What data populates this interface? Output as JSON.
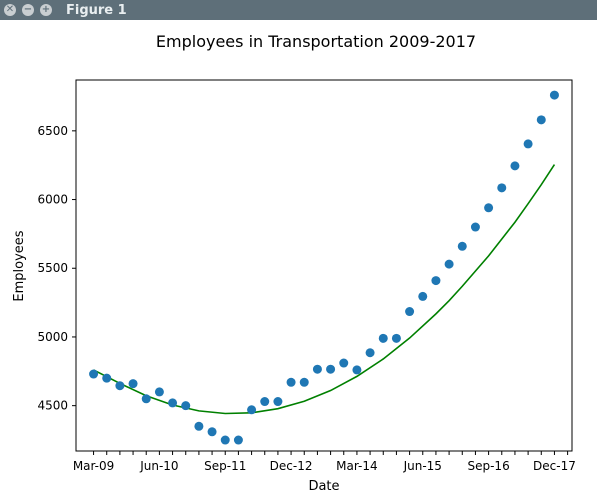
{
  "window": {
    "title": "Figure 1",
    "buttons": [
      {
        "name": "close",
        "glyph": "✕"
      },
      {
        "name": "minimize",
        "glyph": "−"
      },
      {
        "name": "maximize",
        "glyph": "+"
      }
    ]
  },
  "chart_data": {
    "type": "scatter",
    "title": "Employees in Transportation 2009-2017",
    "xlabel": "Date",
    "ylabel": "Employees",
    "ylim": [
      4170,
      6870
    ],
    "yticks": [
      4500,
      5000,
      5500,
      6000,
      6500
    ],
    "xtick_labels": [
      "Mar-09",
      "Jun-10",
      "Sep-11",
      "Dec-12",
      "Mar-14",
      "Jun-15",
      "Sep-16",
      "Dec-17"
    ],
    "xlim": [
      "2008-11",
      "2018-04"
    ],
    "grid": false,
    "series": [
      {
        "kind": "points",
        "color": "#1f77b4",
        "points": [
          [
            "2009-03",
            4730
          ],
          [
            "2009-06",
            4700
          ],
          [
            "2009-09",
            4645
          ],
          [
            "2009-12",
            4660
          ],
          [
            "2010-03",
            4550
          ],
          [
            "2010-06",
            4600
          ],
          [
            "2010-09",
            4520
          ],
          [
            "2010-12",
            4500
          ],
          [
            "2011-03",
            4350
          ],
          [
            "2011-06",
            4310
          ],
          [
            "2011-09",
            4250
          ],
          [
            "2011-12",
            4250
          ],
          [
            "2012-03",
            4470
          ],
          [
            "2012-06",
            4530
          ],
          [
            "2012-09",
            4530
          ],
          [
            "2012-12",
            4670
          ],
          [
            "2013-03",
            4670
          ],
          [
            "2013-06",
            4765
          ],
          [
            "2013-09",
            4765
          ],
          [
            "2013-12",
            4810
          ],
          [
            "2014-03",
            4760
          ],
          [
            "2014-06",
            4885
          ],
          [
            "2014-09",
            4990
          ],
          [
            "2014-12",
            4990
          ],
          [
            "2015-03",
            5185
          ],
          [
            "2015-06",
            5295
          ],
          [
            "2015-09",
            5410
          ],
          [
            "2015-12",
            5530
          ],
          [
            "2016-03",
            5660
          ],
          [
            "2016-06",
            5800
          ],
          [
            "2016-09",
            5940
          ],
          [
            "2016-12",
            6085
          ],
          [
            "2017-03",
            6245
          ],
          [
            "2017-06",
            6405
          ],
          [
            "2017-09",
            6580
          ],
          [
            "2017-12",
            6760
          ]
        ]
      },
      {
        "kind": "fit-line",
        "color": "#008000",
        "points": [
          [
            "2009-03",
            4760
          ],
          [
            "2009-09",
            4662
          ],
          [
            "2010-03",
            4572
          ],
          [
            "2010-09",
            4505
          ],
          [
            "2011-03",
            4462
          ],
          [
            "2011-09",
            4443
          ],
          [
            "2012-03",
            4448
          ],
          [
            "2012-09",
            4478
          ],
          [
            "2013-03",
            4532
          ],
          [
            "2013-09",
            4610
          ],
          [
            "2014-03",
            4713
          ],
          [
            "2014-09",
            4840
          ],
          [
            "2015-03",
            4992
          ],
          [
            "2015-09",
            5168
          ],
          [
            "2015-12",
            5264
          ],
          [
            "2016-03",
            5369
          ],
          [
            "2016-09",
            5590
          ],
          [
            "2017-03",
            5835
          ],
          [
            "2017-06",
            5970
          ],
          [
            "2017-09",
            6108
          ],
          [
            "2017-12",
            6255
          ]
        ]
      }
    ]
  }
}
